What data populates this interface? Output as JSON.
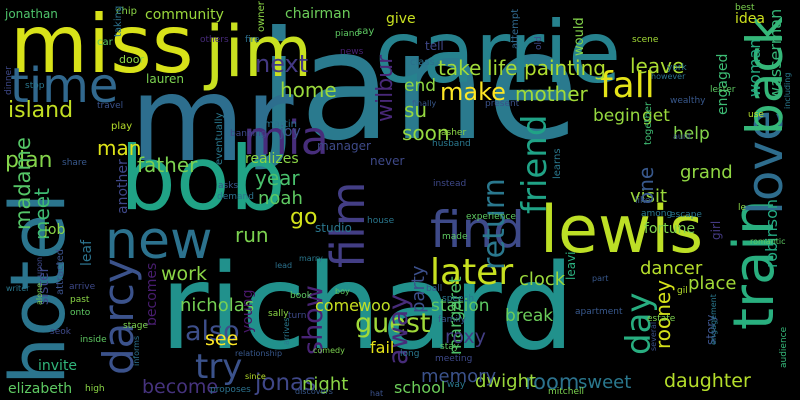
{
  "words": [
    {
      "id": "jane",
      "text": "jane",
      "color": "#2a7a8e"
    },
    {
      "id": "richard",
      "text": "richard",
      "color": "#21918c"
    },
    {
      "id": "mr",
      "text": "mr",
      "color": "#2d6e8e"
    },
    {
      "id": "carrie",
      "text": "carrie",
      "color": "#26828e"
    },
    {
      "id": "miss",
      "text": "miss",
      "color": "#d8e219"
    },
    {
      "id": "jim",
      "text": "jim",
      "color": "#c8e020"
    },
    {
      "id": "bob",
      "text": "bob",
      "color": "#20a386"
    },
    {
      "id": "hotel",
      "text": "hotel",
      "color": "#2b758e"
    },
    {
      "id": "lewis",
      "text": "lewis",
      "color": "#bddf26"
    },
    {
      "id": "new",
      "text": "new",
      "color": "#2c728e"
    },
    {
      "id": "train",
      "text": "train",
      "color": "#29af7f"
    },
    {
      "id": "love",
      "text": "love",
      "color": "#2e6d8e"
    },
    {
      "id": "back",
      "text": "back",
      "color": "#35b779"
    },
    {
      "id": "find",
      "text": "find",
      "color": "#3e4a89"
    },
    {
      "id": "time",
      "text": "time",
      "color": "#31688e"
    },
    {
      "id": "film",
      "text": "film",
      "color": "#433e85"
    },
    {
      "id": "mia",
      "text": "mia",
      "color": "#472d7b"
    },
    {
      "id": "darcy",
      "text": "darcy",
      "color": "#3b528b"
    },
    {
      "id": "later",
      "text": "later",
      "color": "#c8e020"
    },
    {
      "id": "fall",
      "text": "fall",
      "color": "#e5e419"
    },
    {
      "id": "friend",
      "text": "friend",
      "color": "#20a386"
    },
    {
      "id": "return",
      "text": "return",
      "color": "#2a788e"
    },
    {
      "id": "day",
      "text": "day",
      "color": "#28ae80"
    },
    {
      "id": "try",
      "text": "try",
      "color": "#3b528b"
    },
    {
      "id": "also",
      "text": "also",
      "color": "#3d4e8a"
    },
    {
      "id": "show",
      "text": "show",
      "color": "#482374"
    },
    {
      "id": "guest",
      "text": "guest",
      "color": "#a0da39"
    },
    {
      "id": "away",
      "text": "away",
      "color": "#472c7a"
    },
    {
      "id": "take",
      "text": "take",
      "color": "#9fda3a"
    },
    {
      "id": "life",
      "text": "life",
      "color": "#a5db36"
    },
    {
      "id": "painting",
      "text": "painting",
      "color": "#b0dd2f"
    },
    {
      "id": "leave",
      "text": "leave",
      "color": "#aadc32"
    },
    {
      "id": "next",
      "text": "next",
      "color": "#443983"
    },
    {
      "id": "home",
      "text": "home",
      "color": "#9bd93c"
    },
    {
      "id": "wilbur",
      "text": "wilbur",
      "color": "#482878"
    },
    {
      "id": "make",
      "text": "make",
      "color": "#fde725"
    },
    {
      "id": "mother",
      "text": "mother",
      "color": "#a2da37"
    },
    {
      "id": "begin",
      "text": "begin",
      "color": "#95d840"
    },
    {
      "id": "get",
      "text": "get",
      "color": "#9bd93c"
    },
    {
      "id": "end",
      "text": "end",
      "color": "#8fd744"
    },
    {
      "id": "su",
      "text": "su",
      "color": "#95d840"
    },
    {
      "id": "soon",
      "text": "soon",
      "color": "#95d840"
    },
    {
      "id": "island",
      "text": "island",
      "color": "#c2df23"
    },
    {
      "id": "man",
      "text": "man",
      "color": "#dde318"
    },
    {
      "id": "plan",
      "text": "plan",
      "color": "#84d44b"
    },
    {
      "id": "father",
      "text": "father",
      "color": "#7cd250"
    },
    {
      "id": "year",
      "text": "year",
      "color": "#4ac16d"
    },
    {
      "id": "meet",
      "text": "meet",
      "color": "#3fbc73"
    },
    {
      "id": "madame",
      "text": "madame",
      "color": "#55c667"
    },
    {
      "id": "noah",
      "text": "noah",
      "color": "#5ec962"
    },
    {
      "id": "go",
      "text": "go",
      "color": "#d2e21b"
    },
    {
      "id": "run",
      "text": "run",
      "color": "#7cd250"
    },
    {
      "id": "work",
      "text": "work",
      "color": "#8bd646"
    },
    {
      "id": "nicholas",
      "text": "nicholas",
      "color": "#75d054"
    },
    {
      "id": "see",
      "text": "see",
      "color": "#fde725"
    },
    {
      "id": "become",
      "text": "become",
      "color": "#46337e"
    },
    {
      "id": "jonas",
      "text": "jonas",
      "color": "#3f4788"
    },
    {
      "id": "night",
      "text": "night",
      "color": "#8bd646"
    },
    {
      "id": "room",
      "text": "room",
      "color": "#2c728e"
    },
    {
      "id": "dwight",
      "text": "dwight",
      "color": "#9bd93c"
    },
    {
      "id": "sweet",
      "text": "sweet",
      "color": "#2a788e"
    },
    {
      "id": "memory",
      "text": "memory",
      "color": "#3b528b"
    },
    {
      "id": "school",
      "text": "school",
      "color": "#6ccd5a"
    },
    {
      "id": "daughter",
      "text": "daughter",
      "color": "#b5de2b"
    },
    {
      "id": "dancer",
      "text": "dancer",
      "color": "#b5de2b"
    },
    {
      "id": "place",
      "text": "place",
      "color": "#a2da37"
    },
    {
      "id": "visit",
      "text": "visit",
      "color": "#9bd93c"
    },
    {
      "id": "grand",
      "text": "grand",
      "color": "#90d743"
    },
    {
      "id": "help",
      "text": "help",
      "color": "#83d34b"
    },
    {
      "id": "clock",
      "text": "clock",
      "color": "#9bd93c"
    },
    {
      "id": "break",
      "text": "break",
      "color": "#6ccd5a"
    },
    {
      "id": "station",
      "text": "station",
      "color": "#5ec962"
    },
    {
      "id": "rooney",
      "text": "rooney",
      "color": "#d5e21a"
    },
    {
      "id": "margaret",
      "text": "margaret",
      "color": "#4ec36b"
    },
    {
      "id": "party",
      "text": "party",
      "color": "#3c508b"
    },
    {
      "id": "one",
      "text": "one",
      "color": "#38588c"
    },
    {
      "id": "roxy",
      "text": "roxy",
      "color": "#433e85"
    },
    {
      "id": "fail",
      "text": "fail",
      "color": "#e5e419"
    },
    {
      "id": "come",
      "text": "come",
      "color": "#c8e020"
    },
    {
      "id": "woo",
      "text": "woo",
      "color": "#c0df25"
    },
    {
      "id": "woman",
      "text": "woman",
      "color": "#25ab82"
    },
    {
      "id": "wasserman",
      "text": "wasserman",
      "color": "#35b779"
    },
    {
      "id": "robinson",
      "text": "robinson",
      "color": "#24aa83"
    },
    {
      "id": "engaged",
      "text": "engaged",
      "color": "#3dbc74"
    },
    {
      "id": "another",
      "text": "another",
      "color": "#3f4889"
    },
    {
      "id": "becomes",
      "text": "becomes",
      "color": "#481d6f"
    },
    {
      "id": "young",
      "text": "young",
      "color": "#481769"
    },
    {
      "id": "elizabeth",
      "text": "elizabeth",
      "color": "#5ec962"
    },
    {
      "id": "sister",
      "text": "sister",
      "color": "#3e4989"
    },
    {
      "id": "invite",
      "text": "invite",
      "color": "#31b57b"
    },
    {
      "id": "job",
      "text": "job",
      "color": "#8bd646"
    },
    {
      "id": "leaf",
      "text": "leaf",
      "color": "#2c738e"
    },
    {
      "id": "jonathan",
      "text": "jonathan",
      "color": "#4ec36b"
    },
    {
      "id": "community",
      "text": "community",
      "color": "#9bd93c"
    },
    {
      "id": "chairman",
      "text": "chairman",
      "color": "#6ccd5a"
    },
    {
      "id": "lauren",
      "text": "lauren",
      "color": "#7cd250"
    },
    {
      "id": "joy",
      "text": "joy",
      "color": "#3b528b"
    },
    {
      "id": "give",
      "text": "give",
      "color": "#c8e020"
    },
    {
      "id": "idea",
      "text": "idea",
      "color": "#cde11d"
    },
    {
      "id": "realizes",
      "text": "realizes",
      "color": "#8bd646"
    },
    {
      "id": "together",
      "text": "together",
      "color": "#3fbc73"
    },
    {
      "id": "fortune",
      "text": "fortune",
      "color": "#7fd34e"
    },
    {
      "id": "girl",
      "text": "girl",
      "color": "#443a83"
    },
    {
      "id": "story",
      "text": "story",
      "color": "#3b528b"
    },
    {
      "id": "eventually",
      "text": "eventually",
      "color": "#2a788e"
    },
    {
      "id": "manager",
      "text": "manager",
      "color": "#3e4a89"
    },
    {
      "id": "never",
      "text": "never",
      "color": "#3e4989"
    },
    {
      "id": "studio",
      "text": "studio",
      "color": "#2a778e"
    },
    {
      "id": "leavi",
      "text": "leavi",
      "color": "#2ab07f"
    },
    {
      "id": "attempt",
      "text": "attempt",
      "color": "#30688e"
    },
    {
      "id": "would",
      "text": "would",
      "color": "#84d44b"
    },
    {
      "id": "tell",
      "text": "tell",
      "color": "#3f4788"
    },
    {
      "id": "say",
      "text": "say",
      "color": "#5ec962"
    },
    {
      "id": "chip",
      "text": "chip",
      "color": "#8bd646"
    },
    {
      "id": "taking",
      "text": "taking",
      "color": "#2c718e"
    },
    {
      "id": "car",
      "text": "car",
      "color": "#5ec962"
    },
    {
      "id": "door",
      "text": "door",
      "color": "#8bd646"
    },
    {
      "id": "others",
      "text": "others",
      "color": "#472a7a"
    },
    {
      "id": "fire",
      "text": "fire",
      "color": "#2d708e"
    },
    {
      "id": "owner",
      "text": "owner",
      "color": "#8bd646"
    },
    {
      "id": "piano",
      "text": "piano",
      "color": "#5ec962"
    },
    {
      "id": "news",
      "text": "news",
      "color": "#482173"
    },
    {
      "id": "class",
      "text": "class",
      "color": "#2c718e"
    },
    {
      "id": "old",
      "text": "old",
      "color": "#3e4a89"
    },
    {
      "id": "scene",
      "text": "scene",
      "color": "#a2da37"
    },
    {
      "id": "york",
      "text": "york",
      "color": "#2a768e"
    },
    {
      "id": "however",
      "text": "however",
      "color": "#2c728e"
    },
    {
      "id": "wealthy",
      "text": "wealthy",
      "color": "#38588c"
    },
    {
      "id": "lester",
      "text": "lester",
      "color": "#5ec962"
    },
    {
      "id": "best",
      "text": "best",
      "color": "#7cd250"
    },
    {
      "id": "including",
      "text": "including",
      "color": "#2a788e"
    },
    {
      "id": "use",
      "text": "use",
      "color": "#b5de2b"
    },
    {
      "id": "aunt",
      "text": "aunt",
      "color": "#3b528b"
    },
    {
      "id": "audience",
      "text": "audience",
      "color": "#35b779"
    },
    {
      "id": "dinner",
      "text": "dinner",
      "color": "#3e4989"
    },
    {
      "id": "stop",
      "text": "stop",
      "color": "#2a778e"
    },
    {
      "id": "travel",
      "text": "travel",
      "color": "#3b528b"
    },
    {
      "id": "play",
      "text": "play",
      "color": "#b5de2b"
    },
    {
      "id": "share",
      "text": "share",
      "color": "#38588c"
    },
    {
      "id": "martin",
      "text": "martin",
      "color": "#2c728e"
    },
    {
      "id": "banning",
      "text": "banning",
      "color": "#3e4989"
    },
    {
      "id": "finally",
      "text": "finally",
      "color": "#38588c"
    },
    {
      "id": "present",
      "text": "present",
      "color": "#3b528b"
    },
    {
      "id": "asher",
      "text": "asher",
      "color": "#8bd646"
    },
    {
      "id": "husband",
      "text": "husband",
      "color": "#2a788e"
    },
    {
      "id": "learns",
      "text": "learns",
      "color": "#2a788e"
    },
    {
      "id": "instead",
      "text": "instead",
      "color": "#3e4989"
    },
    {
      "id": "asks",
      "text": "asks",
      "color": "#38588c"
    },
    {
      "id": "demand",
      "text": "demand",
      "color": "#2c728e"
    },
    {
      "id": "experience",
      "text": "experience",
      "color": "#5ec962"
    },
    {
      "id": "house",
      "text": "house",
      "color": "#2a778e"
    },
    {
      "id": "made",
      "text": "made",
      "color": "#5ec962"
    },
    {
      "id": "like",
      "text": "like",
      "color": "#38588c"
    },
    {
      "id": "among",
      "text": "among",
      "color": "#2a788e"
    },
    {
      "id": "escape",
      "text": "escape",
      "color": "#2a778e"
    },
    {
      "id": "le",
      "text": "le",
      "color": "#8bd646"
    },
    {
      "id": "alone",
      "text": "alone",
      "color": "#7cd250"
    },
    {
      "id": "attracted",
      "text": "attracted",
      "color": "#3b528b"
    },
    {
      "id": "upon",
      "text": "upon",
      "color": "#3e4989"
    },
    {
      "id": "marry",
      "text": "marry",
      "color": "#2a788e"
    },
    {
      "id": "lead",
      "text": "lead",
      "color": "#2c728e"
    },
    {
      "id": "boy",
      "text": "boy",
      "color": "#5ec962"
    },
    {
      "id": "writer",
      "text": "writer",
      "color": "#2a788e"
    },
    {
      "id": "arrive",
      "text": "arrive",
      "color": "#3e4989"
    },
    {
      "id": "past",
      "text": "past",
      "color": "#8bd646"
    },
    {
      "id": "onto",
      "text": "onto",
      "color": "#5ec962"
    },
    {
      "id": "ball",
      "text": "ball",
      "color": "#38588c"
    },
    {
      "id": "speech",
      "text": "speech",
      "color": "#2a778e"
    },
    {
      "id": "part",
      "text": "part",
      "color": "#38588c"
    },
    {
      "id": "estate",
      "text": "estate",
      "color": "#7cd250"
    },
    {
      "id": "gil",
      "text": "gil",
      "color": "#b5de2b"
    },
    {
      "id": "romantic",
      "text": "romantic",
      "color": "#5ec962"
    },
    {
      "id": "apartment",
      "text": "apartment",
      "color": "#38588c"
    },
    {
      "id": "several",
      "text": "several",
      "color": "#3b528b"
    },
    {
      "id": "engagement",
      "text": "engagement",
      "color": "#2a788e"
    },
    {
      "id": "book",
      "text": "book",
      "color": "#5ec962"
    },
    {
      "id": "sally",
      "text": "sally",
      "color": "#8bd646"
    },
    {
      "id": "turn",
      "text": "turn",
      "color": "#3e4989"
    },
    {
      "id": "stage",
      "text": "stage",
      "color": "#7cd250"
    },
    {
      "id": "seok",
      "text": "seok",
      "color": "#3e4989"
    },
    {
      "id": "inside",
      "text": "inside",
      "color": "#5ec962"
    },
    {
      "id": "informs",
      "text": "informs",
      "color": "#2c728e"
    },
    {
      "id": "relationship",
      "text": "relationship",
      "color": "#38588c"
    },
    {
      "id": "arrives",
      "text": "arrives",
      "color": "#2a788e"
    },
    {
      "id": "comedy",
      "text": "comedy",
      "color": "#7cd250"
    },
    {
      "id": "family",
      "text": "family",
      "color": "#38588c"
    },
    {
      "id": "long",
      "text": "long",
      "color": "#2a788e"
    },
    {
      "id": "stay",
      "text": "stay",
      "color": "#5ec962"
    },
    {
      "id": "meeting",
      "text": "meeting",
      "color": "#3e4989"
    },
    {
      "id": "high",
      "text": "high",
      "color": "#8bd646"
    },
    {
      "id": "proposes",
      "text": "proposes",
      "color": "#2c728e"
    },
    {
      "id": "since",
      "text": "since",
      "color": "#b5de2b"
    },
    {
      "id": "discovers",
      "text": "discovers",
      "color": "#38588c"
    },
    {
      "id": "hat",
      "text": "hat",
      "color": "#3b528b"
    },
    {
      "id": "way",
      "text": "way",
      "color": "#2a788e"
    },
    {
      "id": "mitchell",
      "text": "mitchell",
      "color": "#7cd250"
    }
  ]
}
